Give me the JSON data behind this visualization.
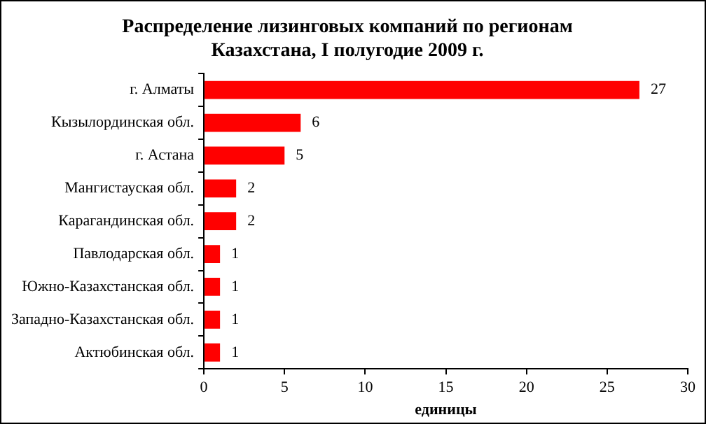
{
  "chart_data": {
    "type": "bar",
    "orientation": "horizontal",
    "title": "Распределение лизинговых компаний по регионам Казахстана, I полугодие 2009 г.",
    "categories": [
      "г. Алматы",
      "Кызылординская обл.",
      "г. Астана",
      "Мангистауская обл.",
      "Карагандинская обл.",
      "Павлодарская обл.",
      "Южно-Казахстанская обл.",
      "Западно-Казахстанская обл.",
      "Актюбинская обл."
    ],
    "values": [
      27,
      6,
      5,
      2,
      2,
      1,
      1,
      1,
      1
    ],
    "color": "#ff0000",
    "xlabel": "единицы",
    "xlim": [
      0,
      30
    ],
    "xticks": [
      0,
      5,
      10,
      15,
      20,
      25,
      30
    ],
    "grid": false,
    "legend": false,
    "data_labels": true
  }
}
